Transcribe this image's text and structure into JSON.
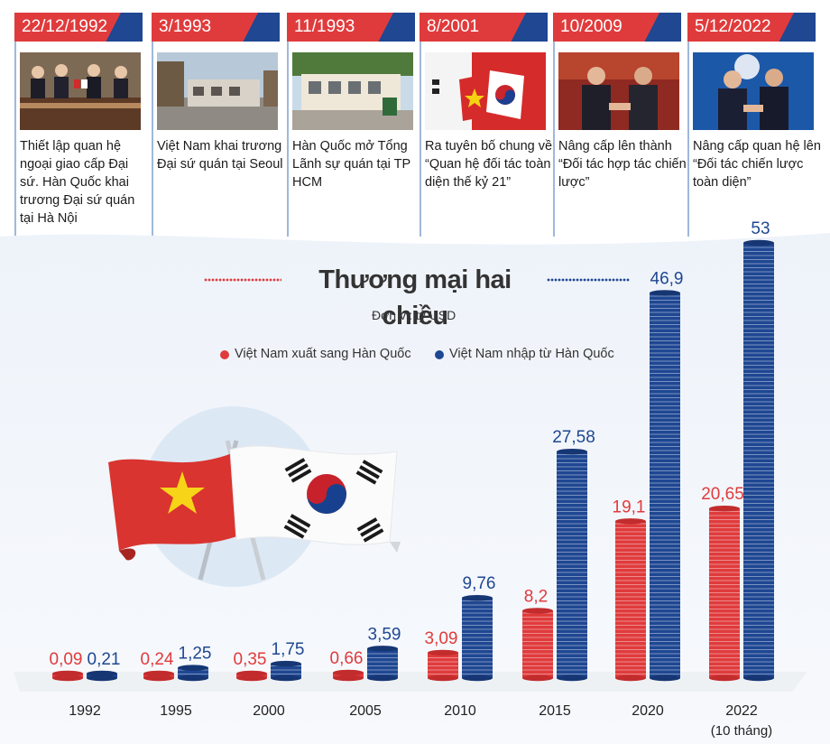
{
  "timeline": [
    {
      "date": "22/12/1992",
      "text": "Thiết lập quan hệ ngoại giao cấp Đại sứ. Hàn Quốc khai trương Đại sứ quán tại Hà Nội",
      "photo": "signing-ceremony-photo"
    },
    {
      "date": "3/1993",
      "text": "Việt Nam khai trương Đại sứ quán tại Seoul",
      "photo": "embassy-building-photo"
    },
    {
      "date": "11/1993",
      "text": "Hàn Quốc mở Tổng Lãnh sự quán tại TP HCM",
      "photo": "consulate-building-photo"
    },
    {
      "date": "8/2001",
      "text": "Ra tuyên bố chung về “Quan hệ đối tác toàn diện thế kỷ 21”",
      "photo": "flags-photo"
    },
    {
      "date": "10/2009",
      "text": "Nâng cấp lên thành “Đối tác hợp tác chiến lược”",
      "photo": "leaders-handshake-photo"
    },
    {
      "date": "5/12/2022",
      "text": "Nâng cấp quan hệ lên “Đối tác chiến lược toàn diện”",
      "photo": "leaders-handshake-2022-photo"
    }
  ],
  "colors": {
    "red": "#e03b3c",
    "blue": "#1f4792",
    "accent_light": "#9fb8dd"
  },
  "chart_data": {
    "type": "bar",
    "title": "Thương mại hai chiều",
    "unit": "Đơn vị: tỷ USD",
    "categories": [
      "1992",
      "1995",
      "2000",
      "2005",
      "2010",
      "2015",
      "2020",
      "2022"
    ],
    "category_notes": [
      "",
      "",
      "",
      "",
      "",
      "",
      "",
      "(10 tháng)"
    ],
    "series": [
      {
        "name": "Việt Nam xuất sang Hàn Quốc",
        "color": "#e03b3c",
        "values": [
          0.09,
          0.24,
          0.35,
          0.66,
          3.09,
          8.2,
          19.1,
          20.65
        ],
        "labels": [
          "0,09",
          "0,24",
          "0,35",
          "0,66",
          "3,09",
          "8,2",
          "19,1",
          "20,65"
        ]
      },
      {
        "name": "Việt Nam nhập từ Hàn Quốc",
        "color": "#1f4792",
        "values": [
          0.21,
          1.25,
          1.75,
          3.59,
          9.76,
          27.58,
          46.9,
          53
        ],
        "labels": [
          "0,21",
          "1,25",
          "1,75",
          "3,59",
          "9,76",
          "27,58",
          "46,9",
          "53"
        ]
      }
    ],
    "ylim": [
      0,
      53
    ],
    "legend_position": "top-left",
    "grid": false
  }
}
